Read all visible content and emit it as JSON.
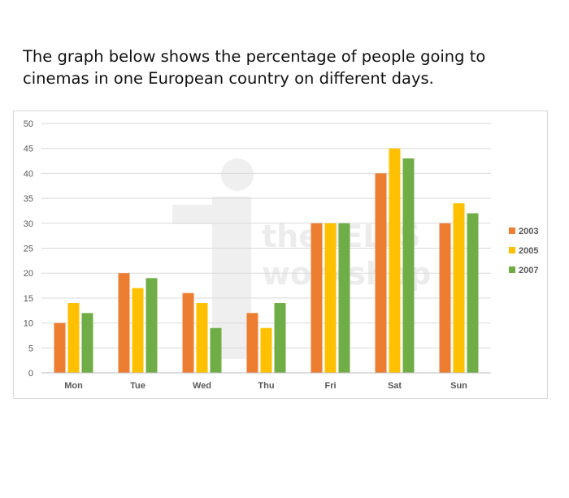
{
  "heading": "The graph below shows the percentage of people going to cinemas in one European country on different days.",
  "watermark": {
    "line1": "the IELTS",
    "line2": "workshop"
  },
  "chart_data": {
    "type": "bar",
    "categories": [
      "Mon",
      "Tue",
      "Wed",
      "Thu",
      "Fri",
      "Sat",
      "Sun"
    ],
    "series": [
      {
        "name": "2003",
        "color": "#ED7D31",
        "values": [
          10,
          20,
          16,
          12,
          30,
          40,
          30
        ]
      },
      {
        "name": "2005",
        "color": "#FFC000",
        "values": [
          14,
          17,
          14,
          9,
          30,
          45,
          34
        ]
      },
      {
        "name": "2007",
        "color": "#70AD47",
        "values": [
          12,
          19,
          9,
          14,
          30,
          43,
          32
        ]
      }
    ],
    "ylim": [
      0,
      50
    ],
    "yticks": [
      0,
      5,
      10,
      15,
      20,
      25,
      30,
      35,
      40,
      45,
      50
    ],
    "grid": true,
    "legend_position": "right",
    "gridline_color": "#d9d9d9",
    "axis_color": "#bfbfbf"
  }
}
